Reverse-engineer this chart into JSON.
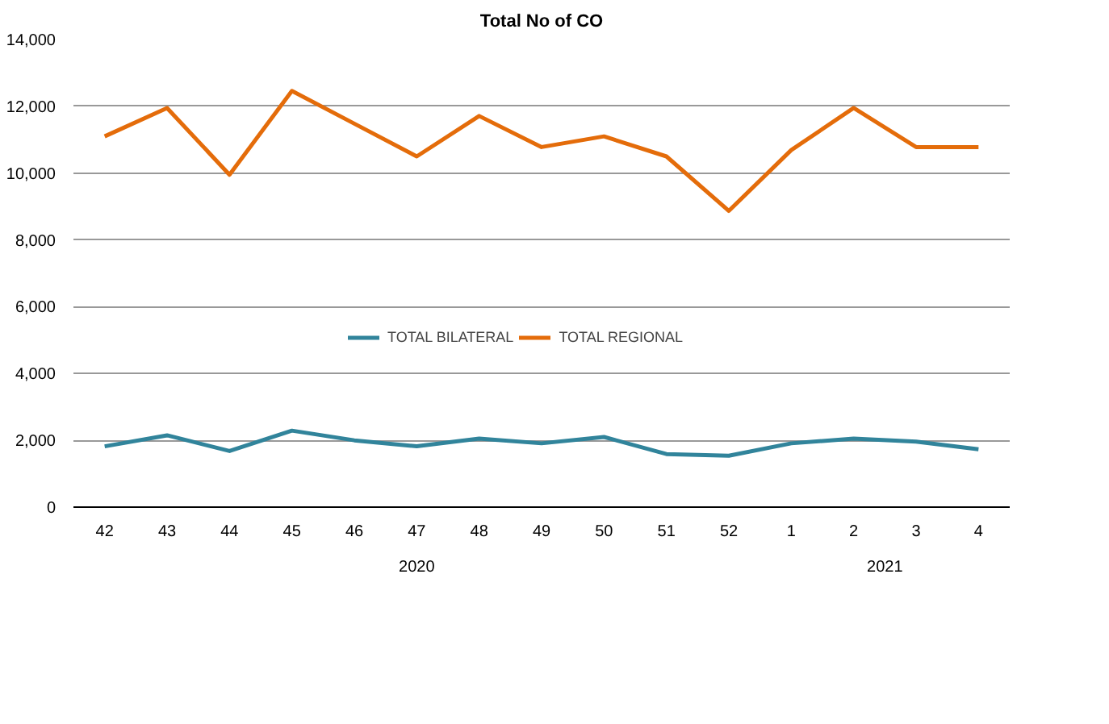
{
  "chart_data": {
    "type": "line",
    "title": "Total No of CO",
    "categories": [
      "42",
      "43",
      "44",
      "45",
      "46",
      "47",
      "48",
      "49",
      "50",
      "51",
      "52",
      "1",
      "2",
      "3",
      "4"
    ],
    "annotations": [
      "2020",
      "2021"
    ],
    "series": [
      {
        "name": "TOTAL BILATERAL",
        "color": "#31849b",
        "values": [
          1820,
          2150,
          1680,
          2290,
          2000,
          1820,
          2050,
          1910,
          2100,
          1590,
          1540,
          1910,
          2050,
          1960,
          1730
        ]
      },
      {
        "name": "TOTAL REGIONAL",
        "color": "#e46c0a",
        "values": [
          11100,
          11950,
          9950,
          12460,
          11480,
          10500,
          11710,
          10780,
          11100,
          10500,
          8870,
          10690,
          11950,
          10780,
          10780
        ]
      }
    ],
    "ylim": [
      0,
      14000
    ],
    "yticks": [
      0,
      {
        "value": 2000,
        "label": "2,000"
      },
      {
        "value": 4000,
        "label": "4,000"
      },
      {
        "value": 6000,
        "label": "6,000"
      },
      {
        "value": 8000,
        "label": "8,000"
      },
      {
        "value": 10000,
        "label": "10,000"
      },
      {
        "value": 12000,
        "label": "12,000"
      },
      {
        "value": 14000,
        "label": "14,000"
      }
    ],
    "grid": "y",
    "legend": "bottom",
    "marker": "none",
    "line_style": "solid"
  }
}
